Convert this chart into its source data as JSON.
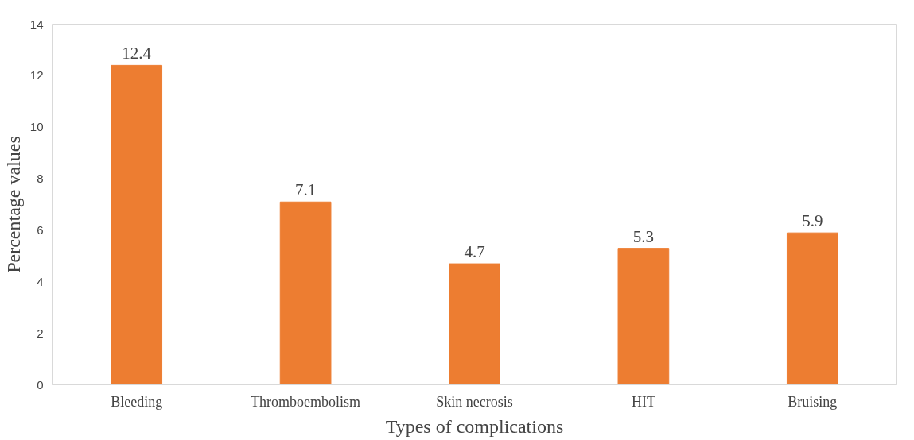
{
  "chart_data": {
    "type": "bar",
    "xlabel": "Types of complications",
    "ylabel": "Percentage values",
    "categories": [
      "Bleeding",
      "Thromboembolism",
      "Skin necrosis",
      "HIT",
      "Bruising"
    ],
    "values": [
      12.4,
      7.1,
      4.7,
      5.3,
      5.9
    ],
    "color": "#ed7d31",
    "ylim": [
      0,
      14
    ],
    "yticks": [
      0,
      2,
      4,
      6,
      8,
      10,
      12,
      14
    ],
    "grid": false,
    "data_labels": true
  }
}
